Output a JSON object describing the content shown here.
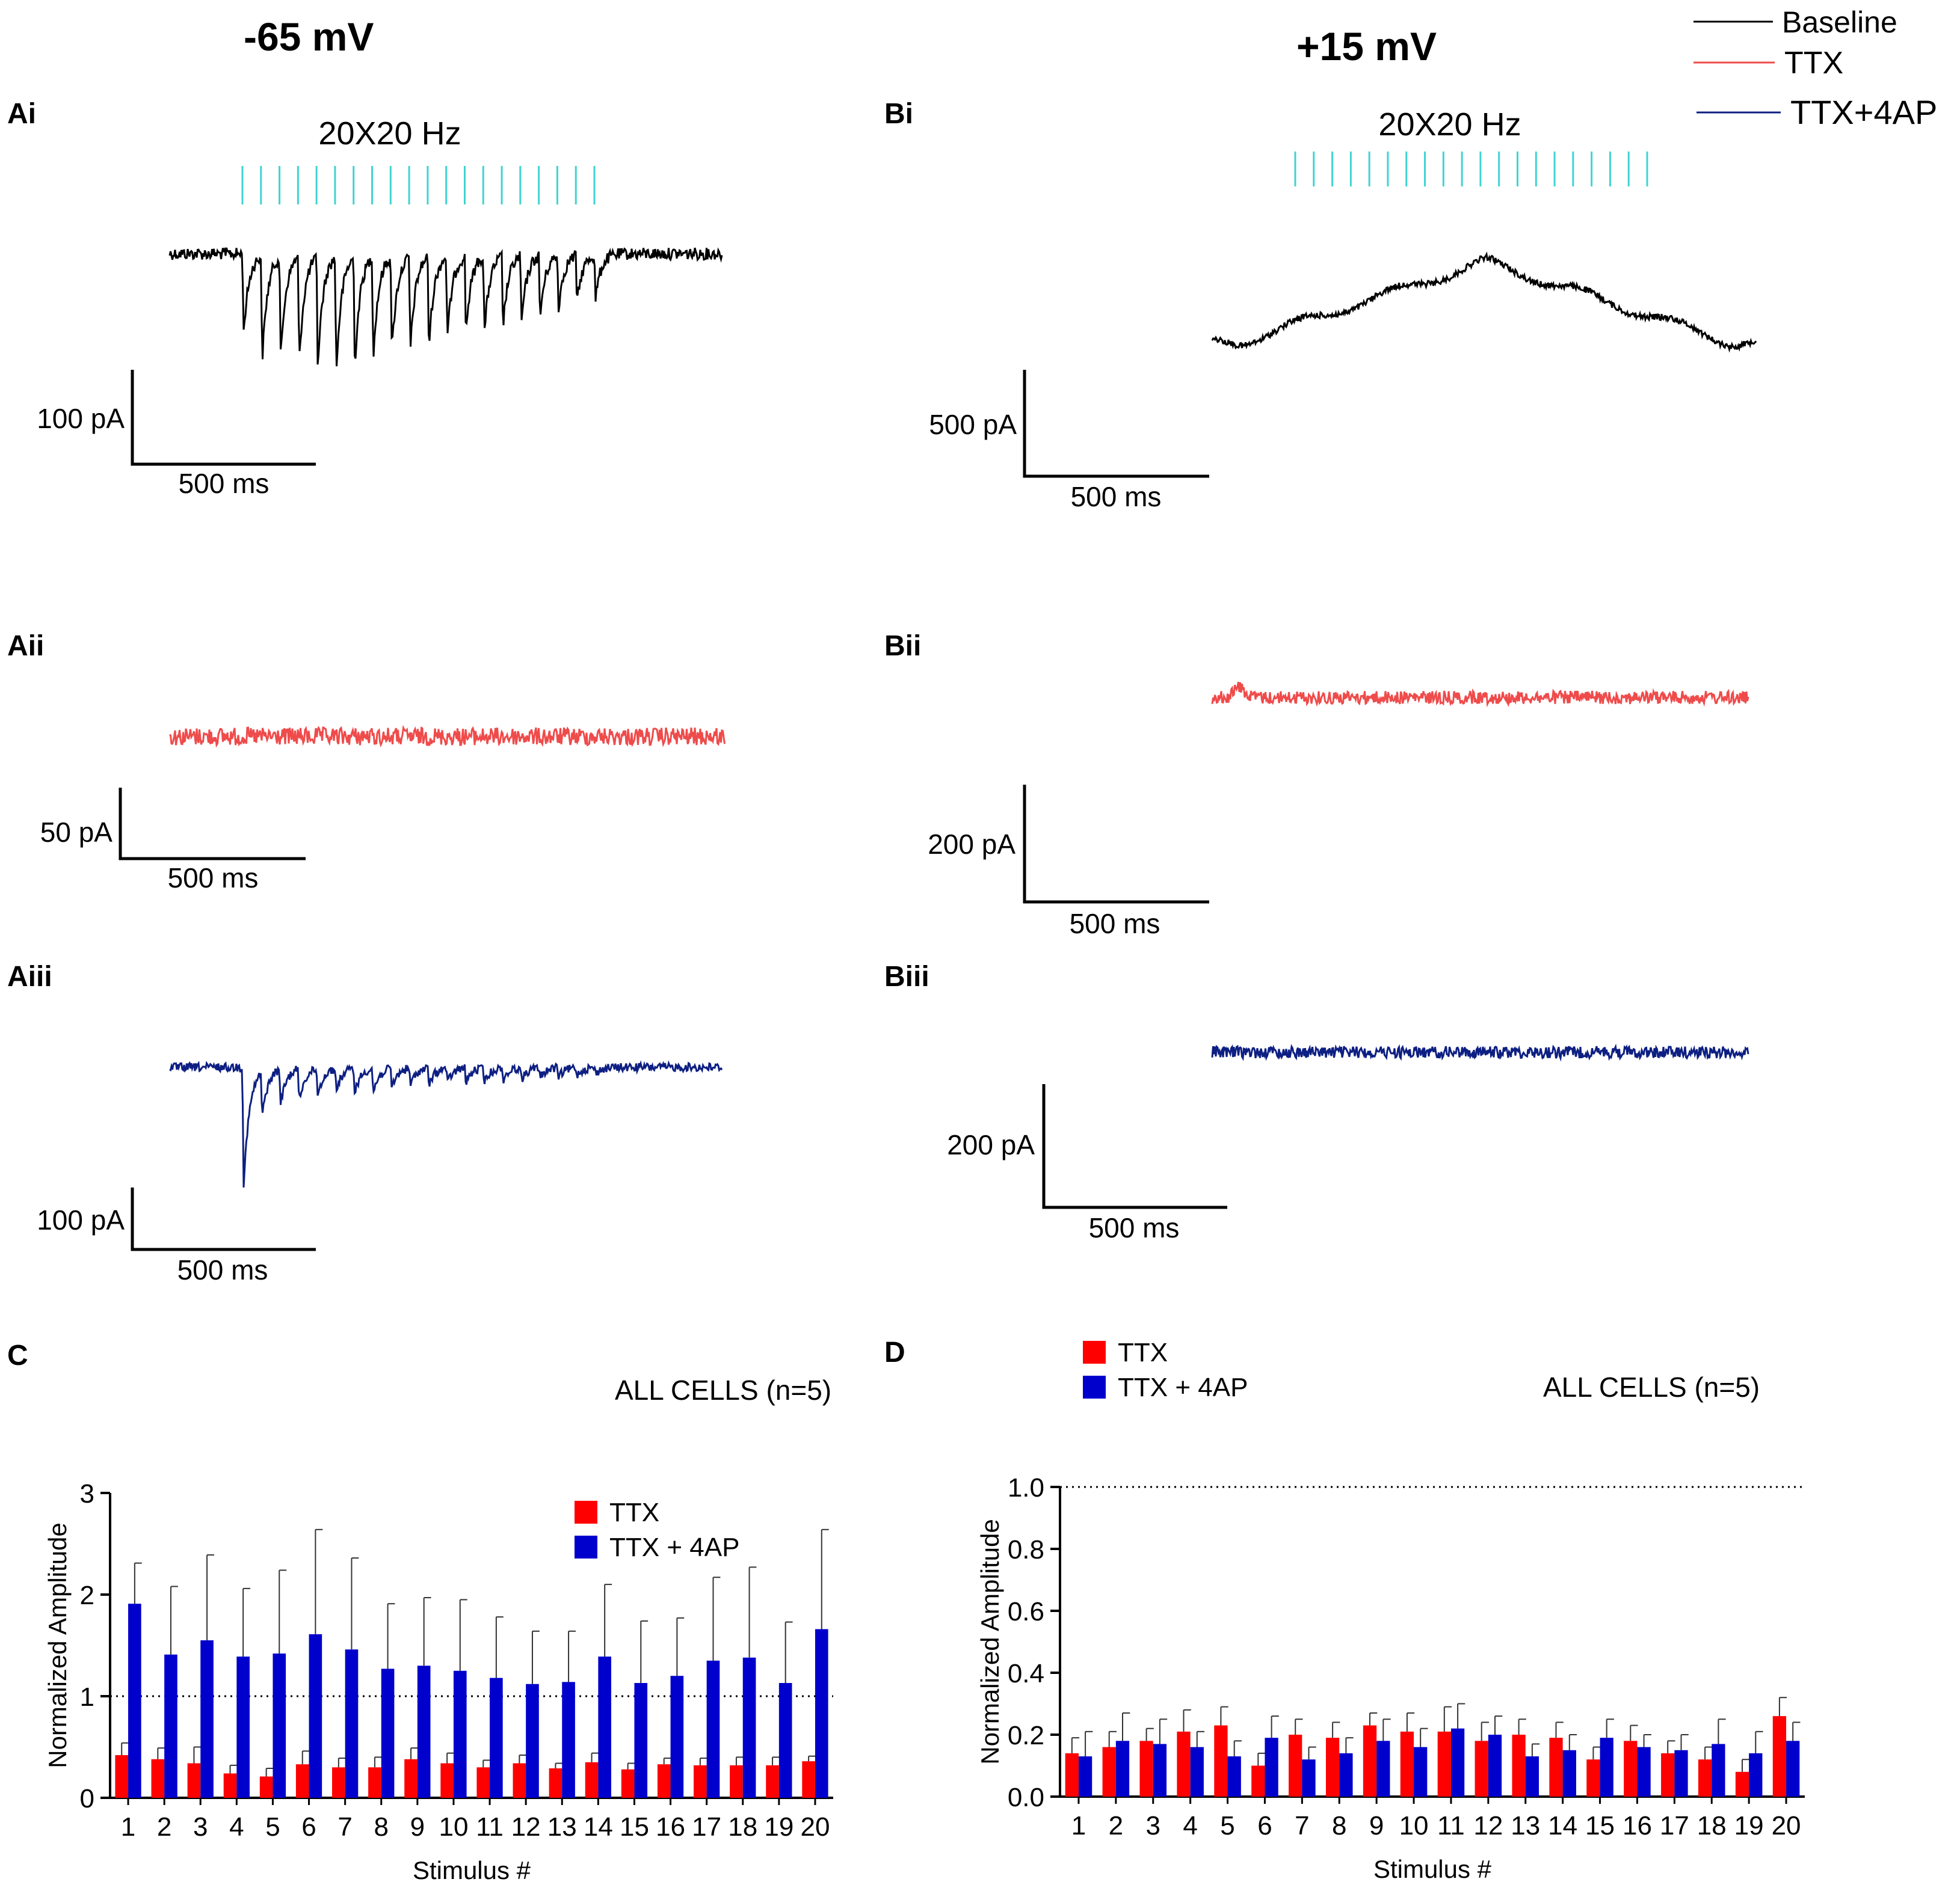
{
  "column_titles": {
    "left": "-65 mV",
    "right": "+15 mV"
  },
  "legend_top": [
    {
      "label": "Baseline",
      "color": "#000000"
    },
    {
      "label": "TTX",
      "color": "#ef4b4b"
    },
    {
      "label": "TTX+4AP",
      "color": "#0d1f82"
    }
  ],
  "stim_color": "#3fd3d3",
  "panels": {
    "Ai": {
      "letter": "Ai",
      "stim_label": "20X20 Hz",
      "stim_count": 20,
      "scale_y": "100 pA",
      "scale_x": "500 ms"
    },
    "Aii": {
      "letter": "Aii",
      "scale_y": "50 pA",
      "scale_x": "500 ms"
    },
    "Aiii": {
      "letter": "Aiii",
      "scale_y": "100 pA",
      "scale_x": "500 ms"
    },
    "Bi": {
      "letter": "Bi",
      "stim_label": "20X20 Hz",
      "stim_count": 20,
      "scale_y": "500 pA",
      "scale_x": "500 ms"
    },
    "Bii": {
      "letter": "Bii",
      "scale_y": "200 pA",
      "scale_x": "500 ms"
    },
    "Biii": {
      "letter": "Biii",
      "scale_y": "200 pA",
      "scale_x": "500 ms"
    }
  },
  "chart_data": [
    {
      "panel": "C",
      "type": "bar",
      "annotation": "ALL CELLS (n=5)",
      "xlabel": "Stimulus #",
      "ylabel": "Normalized Amplitude",
      "ylim": [
        0,
        3
      ],
      "yticks": [
        "0",
        "1",
        "2",
        "3"
      ],
      "reference_line": 1,
      "legend": [
        "TTX",
        "TTX + 4AP"
      ],
      "categories": [
        "1",
        "2",
        "3",
        "4",
        "5",
        "6",
        "7",
        "8",
        "9",
        "10",
        "11",
        "12",
        "13",
        "14",
        "15",
        "16",
        "17",
        "18",
        "19",
        "20"
      ],
      "series": [
        {
          "name": "TTX",
          "color": "#ff0000",
          "values": [
            0.42,
            0.38,
            0.34,
            0.24,
            0.21,
            0.33,
            0.3,
            0.3,
            0.38,
            0.34,
            0.3,
            0.34,
            0.29,
            0.35,
            0.28,
            0.33,
            0.32,
            0.32,
            0.32,
            0.36
          ],
          "errors": [
            0.12,
            0.11,
            0.16,
            0.08,
            0.08,
            0.13,
            0.09,
            0.1,
            0.11,
            0.1,
            0.07,
            0.08,
            0.05,
            0.09,
            0.06,
            0.06,
            0.07,
            0.08,
            0.08,
            0.05
          ]
        },
        {
          "name": "TTX + 4AP",
          "color": "#0000cc",
          "values": [
            1.91,
            1.41,
            1.55,
            1.39,
            1.42,
            1.61,
            1.46,
            1.27,
            1.3,
            1.25,
            1.18,
            1.12,
            1.14,
            1.39,
            1.13,
            1.2,
            1.35,
            1.38,
            1.13,
            1.66
          ],
          "errors": [
            0.4,
            0.67,
            0.84,
            0.67,
            0.82,
            1.03,
            0.9,
            0.64,
            0.67,
            0.7,
            0.6,
            0.52,
            0.5,
            0.71,
            0.61,
            0.57,
            0.82,
            0.89,
            0.6,
            0.98
          ]
        }
      ]
    },
    {
      "panel": "D",
      "type": "bar",
      "annotation": "ALL CELLS (n=5)",
      "xlabel": "Stimulus #",
      "ylabel": "Normalized Amplitude",
      "ylim": [
        0,
        1.0
      ],
      "yticks": [
        "0.0",
        "0.2",
        "0.4",
        "0.6",
        "0.8",
        "1.0"
      ],
      "reference_line": 1.0,
      "legend": [
        "TTX",
        "TTX + 4AP"
      ],
      "categories": [
        "1",
        "2",
        "3",
        "4",
        "5",
        "6",
        "7",
        "8",
        "9",
        "10",
        "11",
        "12",
        "13",
        "14",
        "15",
        "16",
        "17",
        "18",
        "19",
        "20"
      ],
      "series": [
        {
          "name": "TTX",
          "color": "#ff0000",
          "values": [
            0.14,
            0.16,
            0.18,
            0.21,
            0.23,
            0.1,
            0.2,
            0.19,
            0.23,
            0.21,
            0.21,
            0.18,
            0.2,
            0.19,
            0.12,
            0.18,
            0.14,
            0.12,
            0.08,
            0.26
          ],
          "errors": [
            0.05,
            0.05,
            0.04,
            0.07,
            0.06,
            0.04,
            0.05,
            0.05,
            0.04,
            0.06,
            0.08,
            0.06,
            0.05,
            0.05,
            0.04,
            0.05,
            0.04,
            0.04,
            0.04,
            0.06
          ]
        },
        {
          "name": "TTX + 4AP",
          "color": "#0000cc",
          "values": [
            0.13,
            0.18,
            0.17,
            0.16,
            0.13,
            0.19,
            0.12,
            0.14,
            0.18,
            0.16,
            0.22,
            0.2,
            0.13,
            0.15,
            0.19,
            0.16,
            0.15,
            0.17,
            0.14,
            0.18
          ],
          "errors": [
            0.08,
            0.09,
            0.08,
            0.05,
            0.05,
            0.07,
            0.04,
            0.05,
            0.07,
            0.06,
            0.08,
            0.06,
            0.04,
            0.05,
            0.06,
            0.04,
            0.05,
            0.08,
            0.07,
            0.06
          ]
        }
      ]
    }
  ]
}
